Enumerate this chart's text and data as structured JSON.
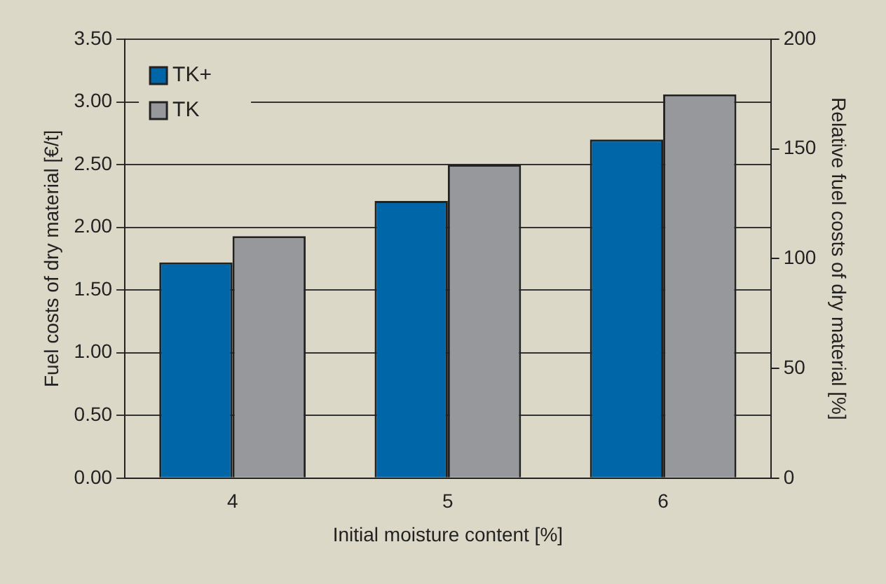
{
  "chart_data": {
    "type": "bar",
    "xlabel": "Initial moisture content [%]",
    "ylabel": "Fuel costs of dry material [€/t]",
    "y2label": "Relative fuel costs of dry material [%]",
    "categories": [
      "4",
      "5",
      "6"
    ],
    "series": [
      {
        "name": "TK+",
        "color": "#0066a8",
        "values": [
          1.72,
          2.21,
          2.7
        ]
      },
      {
        "name": "TK",
        "color": "#97989c",
        "values": [
          1.93,
          2.5,
          3.06
        ]
      }
    ],
    "ylim": [
      0,
      3.5
    ],
    "yticks": [
      {
        "value": 0,
        "label": "0.00"
      },
      {
        "value": 0.5,
        "label": "0.50"
      },
      {
        "value": 1,
        "label": "1.00"
      },
      {
        "value": 1.5,
        "label": "1.50"
      },
      {
        "value": 2,
        "label": "2.00"
      },
      {
        "value": 2.5,
        "label": "2.50"
      },
      {
        "value": 3,
        "label": "3.00"
      },
      {
        "value": 3.5,
        "label": "3.50"
      }
    ],
    "y2lim": [
      0,
      200
    ],
    "y2ticks": [
      0,
      50,
      100,
      150,
      200
    ],
    "grid": "y",
    "legend": "top left"
  }
}
